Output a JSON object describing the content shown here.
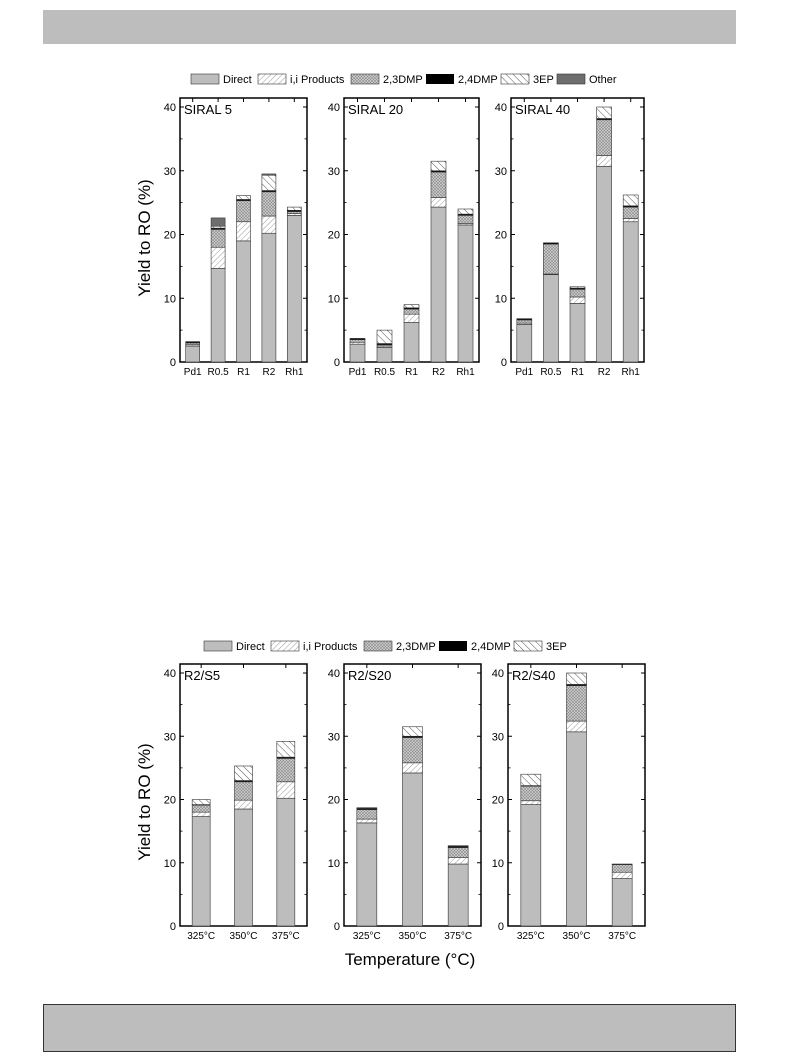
{
  "legend_top": [
    "Direct",
    "i,i Products",
    "2,3DMP",
    "2,4DMP",
    "3EP",
    "Other"
  ],
  "legend_bottom": [
    "Direct",
    "i,i Products",
    "2,3DMP",
    "2,4DMP",
    "3EP"
  ],
  "colors": {
    "Direct": "#bdbdbd",
    "i,i Products": "#ffffff",
    "2,3DMP": "#cfcfcf",
    "2,4DMP": "#000000",
    "3EP": "#ffffff",
    "Other": "#6e6e6e"
  },
  "ylabel_top": "Yield to RO (%)",
  "ylabel_bottom": "Yield to RO (%)",
  "xlabel_bottom": "Temperature (°C)",
  "chart_data": [
    {
      "type": "bar",
      "stacked": true,
      "title": "SIRAL 5",
      "ylim": [
        0,
        40
      ],
      "yticks": [
        0,
        10,
        20,
        30,
        40
      ],
      "categories": [
        "Pd1",
        "R0.5",
        "R1",
        "R2",
        "Rh1"
      ],
      "series": [
        {
          "name": "Direct",
          "values": [
            2.5,
            14.7,
            19.0,
            20.2,
            23.0
          ]
        },
        {
          "name": "i,i Products",
          "values": [
            0.2,
            3.3,
            3.0,
            2.7,
            0.3
          ]
        },
        {
          "name": "2,3DMP",
          "values": [
            0.3,
            2.8,
            3.3,
            3.8,
            0.3
          ]
        },
        {
          "name": "2,4DMP",
          "values": [
            0.2,
            0.2,
            0.2,
            0.2,
            0.2
          ]
        },
        {
          "name": "3EP",
          "values": [
            0.0,
            0.3,
            0.6,
            2.4,
            0.5
          ]
        },
        {
          "name": "Other",
          "values": [
            0.0,
            1.3,
            0.0,
            0.2,
            0.0
          ]
        }
      ]
    },
    {
      "type": "bar",
      "stacked": true,
      "title": "SIRAL 20",
      "ylim": [
        0,
        40
      ],
      "yticks": [
        0,
        10,
        20,
        30,
        40
      ],
      "categories": [
        "Pd1",
        "R0.5",
        "R1",
        "R2",
        "Rh1"
      ],
      "series": [
        {
          "name": "Direct",
          "values": [
            2.8,
            2.3,
            6.2,
            24.3,
            21.5
          ]
        },
        {
          "name": "i,i Products",
          "values": [
            0.3,
            0.2,
            1.3,
            1.5,
            0.2
          ]
        },
        {
          "name": "2,3DMP",
          "values": [
            0.4,
            0.2,
            0.8,
            4.0,
            1.3
          ]
        },
        {
          "name": "2,4DMP",
          "values": [
            0.2,
            0.2,
            0.2,
            0.2,
            0.2
          ]
        },
        {
          "name": "3EP",
          "values": [
            0.0,
            2.1,
            0.5,
            1.5,
            0.8
          ]
        },
        {
          "name": "Other",
          "values": [
            0.0,
            0.0,
            0.0,
            0.0,
            0.0
          ]
        }
      ]
    },
    {
      "type": "bar",
      "stacked": true,
      "title": "SIRAL 40",
      "ylim": [
        0,
        40
      ],
      "yticks": [
        0,
        10,
        20,
        30,
        40
      ],
      "categories": [
        "Pd1",
        "R0.5",
        "R1",
        "R2",
        "Rh1"
      ],
      "series": [
        {
          "name": "Direct",
          "values": [
            5.9,
            13.7,
            9.2,
            30.7,
            22.0
          ]
        },
        {
          "name": "i,i Products",
          "values": [
            0.2,
            0.1,
            1.0,
            1.7,
            0.5
          ]
        },
        {
          "name": "2,3DMP",
          "values": [
            0.5,
            4.7,
            1.2,
            5.6,
            1.8
          ]
        },
        {
          "name": "2,4DMP",
          "values": [
            0.2,
            0.2,
            0.2,
            0.2,
            0.2
          ]
        },
        {
          "name": "3EP",
          "values": [
            0.0,
            0.0,
            0.2,
            1.8,
            1.7
          ]
        },
        {
          "name": "Other",
          "values": [
            0.0,
            0.0,
            0.0,
            0.0,
            0.0
          ]
        }
      ]
    },
    {
      "type": "bar",
      "stacked": true,
      "title": "R2/S5",
      "ylim": [
        0,
        40
      ],
      "yticks": [
        0,
        10,
        20,
        30,
        40
      ],
      "categories": [
        "325°C",
        "350°C",
        "375°C"
      ],
      "series": [
        {
          "name": "Direct",
          "values": [
            17.3,
            18.5,
            20.2
          ]
        },
        {
          "name": "i,i Products",
          "values": [
            0.7,
            1.4,
            2.6
          ]
        },
        {
          "name": "2,3DMP",
          "values": [
            1.1,
            2.9,
            3.7
          ]
        },
        {
          "name": "2,4DMP",
          "values": [
            0.1,
            0.2,
            0.2
          ]
        },
        {
          "name": "3EP",
          "values": [
            0.8,
            2.3,
            2.5
          ]
        }
      ]
    },
    {
      "type": "bar",
      "stacked": true,
      "title": "R2/S20",
      "ylim": [
        0,
        40
      ],
      "yticks": [
        0,
        10,
        20,
        30,
        40
      ],
      "categories": [
        "325°C",
        "350°C",
        "375°C"
      ],
      "series": [
        {
          "name": "Direct",
          "values": [
            16.3,
            24.2,
            9.8
          ]
        },
        {
          "name": "i,i Products",
          "values": [
            0.6,
            1.6,
            1.0
          ]
        },
        {
          "name": "2,3DMP",
          "values": [
            1.5,
            4.0,
            1.6
          ]
        },
        {
          "name": "2,4DMP",
          "values": [
            0.2,
            0.2,
            0.2
          ]
        },
        {
          "name": "3EP",
          "values": [
            0.1,
            1.5,
            0.1
          ]
        }
      ]
    },
    {
      "type": "bar",
      "stacked": true,
      "title": "R2/S40",
      "ylim": [
        0,
        40
      ],
      "yticks": [
        0,
        10,
        20,
        30,
        40
      ],
      "categories": [
        "325°C",
        "350°C",
        "375°C"
      ],
      "series": [
        {
          "name": "Direct",
          "values": [
            19.2,
            30.7,
            7.5
          ]
        },
        {
          "name": "i,i Products",
          "values": [
            0.6,
            1.7,
            1.0
          ]
        },
        {
          "name": "2,3DMP",
          "values": [
            2.3,
            5.6,
            1.2
          ]
        },
        {
          "name": "2,4DMP",
          "values": [
            0.1,
            0.2,
            0.1
          ]
        },
        {
          "name": "3EP",
          "values": [
            1.8,
            1.8,
            0.0
          ]
        }
      ]
    }
  ]
}
